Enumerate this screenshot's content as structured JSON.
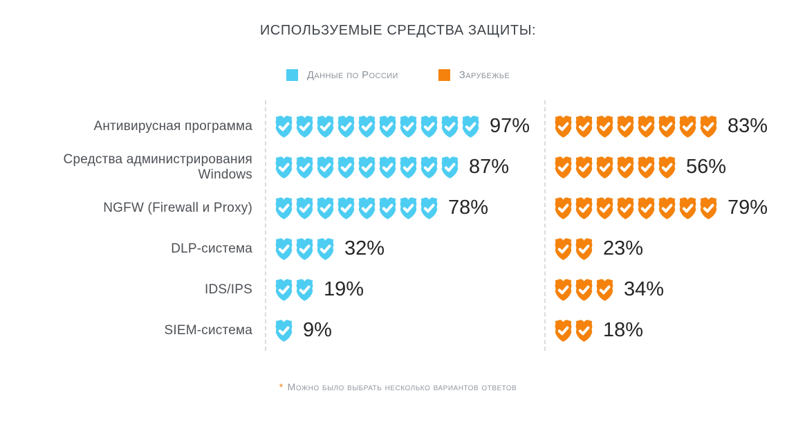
{
  "title": "ИСПОЛЬЗУЕМЫЕ СРЕДСТВА ЗАЩИТЫ:",
  "legend": {
    "items": [
      {
        "label": "Данные по России",
        "color": "#4ECDF2"
      },
      {
        "label": "Зарубежье",
        "color": "#F4820C"
      }
    ]
  },
  "footnote": {
    "marker": "*",
    "text": "Можно было выбрать несколько вариантов ответов"
  },
  "display": {
    "row_labels": [
      "Антивирусная программа",
      "Средства администрирования\nWindows",
      "NGFW (Firewall и Proxy)",
      "DLP-система",
      "IDS/IPS",
      "SIEM-система"
    ],
    "percent_suffix": "%"
  },
  "chart_data": {
    "type": "pictogram",
    "icon": "shield-check",
    "icon_unit_percent": 10,
    "title": "ИСПОЛЬЗУЕМЫЕ СРЕДСТВА ЗАЩИТЫ:",
    "legend_position": "top-center",
    "footnote": "* Можно было выбрать несколько вариантов ответов",
    "categories": [
      "Антивирусная программа",
      "Средства администрирования Windows",
      "NGFW (Firewall и Proxy)",
      "DLP-система",
      "IDS/IPS",
      "SIEM-система"
    ],
    "series": [
      {
        "name": "Данные по России",
        "color": "#4ECDF2",
        "values": [
          97,
          87,
          78,
          32,
          19,
          9
        ],
        "icon_counts": [
          10,
          9,
          8,
          3,
          2,
          1
        ]
      },
      {
        "name": "Зарубежье",
        "color": "#F4820C",
        "values": [
          83,
          56,
          79,
          23,
          34,
          18
        ],
        "icon_counts": [
          8,
          6,
          8,
          2,
          3,
          2
        ]
      }
    ]
  }
}
